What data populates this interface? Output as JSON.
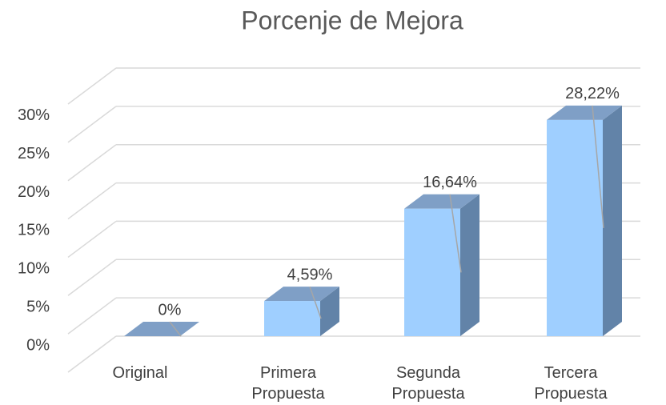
{
  "chart_data": {
    "type": "bar3d",
    "title": "Porcenje de Mejora",
    "categories": [
      "Original",
      "Primera Propuesta",
      "Segunda Propuesta",
      "Tercera Propuesta"
    ],
    "values": [
      0,
      4.59,
      16.64,
      28.22
    ],
    "value_labels": [
      "0%",
      "4,59%",
      "16,64%",
      "28,22%"
    ],
    "color": "#9fcfff",
    "ylim": [
      0,
      35
    ],
    "yticks": [
      {
        "value": 0,
        "label": "0%"
      },
      {
        "value": 5,
        "label": "5%"
      },
      {
        "value": 10,
        "label": "10%"
      },
      {
        "value": 15,
        "label": "15%"
      },
      {
        "value": 20,
        "label": "20%"
      },
      {
        "value": 25,
        "label": "25%"
      },
      {
        "value": 30,
        "label": "30%"
      }
    ],
    "grid": true
  }
}
